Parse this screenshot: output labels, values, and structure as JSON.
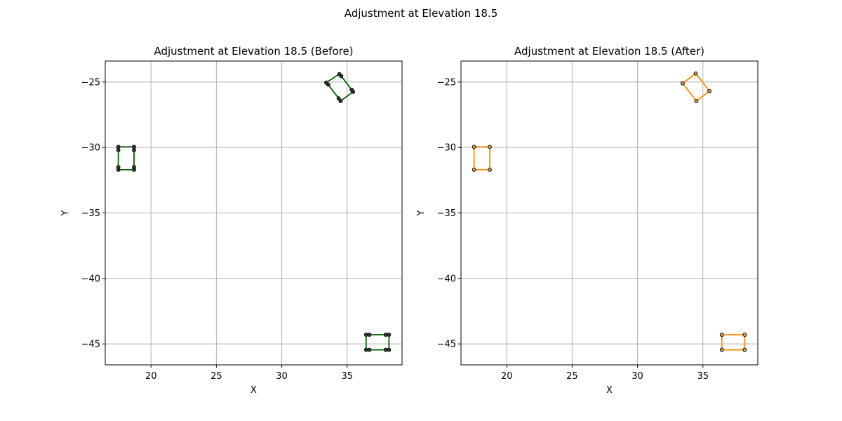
{
  "figure": {
    "suptitle": "Adjustment at Elevation 18.5"
  },
  "colors": {
    "grid": "#b0b0b0",
    "axis": "#000000",
    "before_line": "#006400",
    "after_line": "#ff8c00",
    "marker_face_before": "#3a3a3a",
    "marker_face_after": "#d9a85a",
    "marker_edge": "#000000"
  },
  "chart_data": [
    {
      "type": "line",
      "title": "Adjustment at Elevation 18.5 (Before)",
      "xlabel": "X",
      "ylabel": "Y",
      "xlim": [
        16.5,
        39.2
      ],
      "ylim": [
        -46.6,
        -23.4
      ],
      "xticks": [
        20,
        25,
        30,
        35
      ],
      "yticks": [
        -25,
        -30,
        -35,
        -40,
        -45
      ],
      "xtick_labels": [
        "20",
        "25",
        "30",
        "35"
      ],
      "ytick_labels": [
        "−25",
        "−30",
        "−35",
        "−40",
        "−45"
      ],
      "grid": true,
      "series": [
        {
          "closed": true,
          "points": [
            [
              17.5,
              -29.95
            ],
            [
              17.5,
              -30.2
            ],
            [
              17.5,
              -31.5
            ],
            [
              17.5,
              -31.7
            ],
            [
              18.7,
              -31.7
            ],
            [
              18.7,
              -31.5
            ],
            [
              18.7,
              -30.2
            ],
            [
              18.7,
              -29.95
            ]
          ]
        },
        {
          "closed": true,
          "points": [
            [
              33.4,
              -25.05
            ],
            [
              33.55,
              -25.2
            ],
            [
              34.35,
              -26.25
            ],
            [
              34.5,
              -26.45
            ],
            [
              35.45,
              -25.75
            ],
            [
              35.35,
              -25.6
            ],
            [
              34.55,
              -24.55
            ],
            [
              34.4,
              -24.4
            ]
          ]
        },
        {
          "closed": true,
          "points": [
            [
              36.45,
              -44.3
            ],
            [
              36.7,
              -44.3
            ],
            [
              37.95,
              -44.3
            ],
            [
              38.2,
              -44.3
            ],
            [
              38.2,
              -45.45
            ],
            [
              37.95,
              -45.45
            ],
            [
              36.7,
              -45.45
            ],
            [
              36.45,
              -45.45
            ]
          ]
        }
      ]
    },
    {
      "type": "line",
      "title": "Adjustment at Elevation 18.5 (After)",
      "xlabel": "X",
      "ylabel": "Y",
      "xlim": [
        16.5,
        39.2
      ],
      "ylim": [
        -46.6,
        -23.4
      ],
      "xticks": [
        20,
        25,
        30,
        35
      ],
      "yticks": [
        -25,
        -30,
        -35,
        -40,
        -45
      ],
      "xtick_labels": [
        "20",
        "25",
        "30",
        "35"
      ],
      "ytick_labels": [
        "−25",
        "−30",
        "−35",
        "−40",
        "−45"
      ],
      "grid": true,
      "series": [
        {
          "closed": true,
          "points": [
            [
              17.5,
              -29.95
            ],
            [
              18.7,
              -29.95
            ],
            [
              18.7,
              -31.7
            ],
            [
              17.5,
              -31.7
            ]
          ]
        },
        {
          "closed": true,
          "points": [
            [
              33.45,
              -25.1
            ],
            [
              34.45,
              -24.35
            ],
            [
              35.5,
              -25.7
            ],
            [
              34.5,
              -26.45
            ]
          ]
        },
        {
          "closed": true,
          "points": [
            [
              36.45,
              -44.3
            ],
            [
              38.2,
              -44.3
            ],
            [
              38.2,
              -45.45
            ],
            [
              36.45,
              -45.45
            ]
          ]
        }
      ]
    }
  ]
}
